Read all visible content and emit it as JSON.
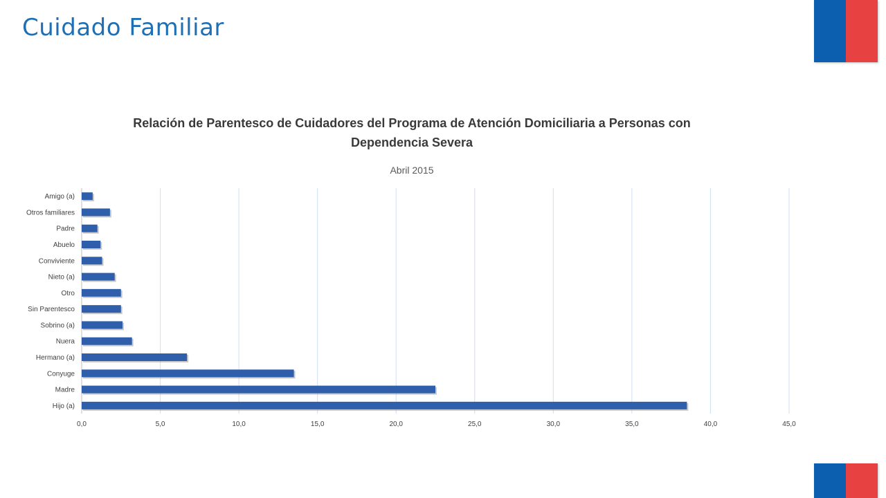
{
  "page": {
    "title": "Cuidado Familiar"
  },
  "colors": {
    "title": "#1f6fb5",
    "flag_blue": "#0b5fae",
    "flag_red": "#e84141",
    "bar": "#2f5fab",
    "grid": "#cfe0f2"
  },
  "chart_data": {
    "type": "bar",
    "orientation": "horizontal",
    "title": "Relación de Parentesco de Cuidadores del Programa de Atención Domiciliaria a Personas con Dependencia Severa",
    "subtitle": "Abril 2015",
    "categories": [
      "Amigo (a)",
      "Otros familiares",
      "Padre",
      "Abuelo",
      "Conviviente",
      "Nieto (a)",
      "Otro",
      "Sin Parentesco",
      "Sobrino (a)",
      "Nuera",
      "Hermano (a)",
      "Conyuge",
      "Madre",
      "Hijo (a)"
    ],
    "values": [
      0.7,
      1.8,
      1.0,
      1.2,
      1.3,
      2.1,
      2.5,
      2.5,
      2.6,
      3.2,
      6.7,
      13.5,
      22.5,
      38.5
    ],
    "xlim": [
      0,
      45
    ],
    "xticks": [
      "0,0",
      "5,0",
      "10,0",
      "15,0",
      "20,0",
      "25,0",
      "30,0",
      "35,0",
      "40,0",
      "45,0"
    ],
    "xlabel": "",
    "ylabel": "",
    "grid": "vertical",
    "legend": "none"
  }
}
